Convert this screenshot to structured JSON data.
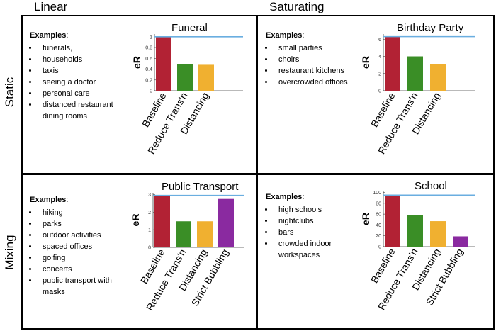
{
  "headers": {
    "columns": [
      "Linear",
      "Saturating"
    ],
    "rows": [
      "Static",
      "Mixing"
    ]
  },
  "panels": [
    {
      "examples_title": "Examples",
      "examples_colon": ":",
      "examples": [
        "funerals,",
        "households",
        "taxis",
        "seeing a doctor",
        "personal care",
        "distanced restaurant dining rooms"
      ]
    },
    {
      "examples_title": "Examples",
      "examples_colon": ":",
      "examples": [
        "small parties",
        "choirs",
        "restaurant kitchens",
        "overcrowded offices"
      ]
    },
    {
      "examples_title": "Examples",
      "examples_colon": ":",
      "examples": [
        "hiking",
        "parks",
        "outdoor activities",
        "spaced offices",
        "golfing",
        "concerts",
        "public transport with masks"
      ]
    },
    {
      "examples_title": "Examples",
      "examples_colon": ":",
      "examples": [
        "high schools",
        "nightclubs",
        "bars",
        "crowded indoor workspaces"
      ]
    }
  ],
  "colors": {
    "baseline": "#b22234",
    "reduce": "#3a8e26",
    "distancing": "#f0b030",
    "bubbling": "#8a2aa0",
    "refline": "#6aaee0"
  },
  "chart_data": [
    {
      "type": "bar",
      "title": "Funeral",
      "ylabel": "eR",
      "categories": [
        "Baseline",
        "Reduce Trans'n",
        "Distancing"
      ],
      "values": [
        1.0,
        0.49,
        0.48
      ],
      "ylim": [
        0,
        1.05
      ],
      "yticks": [
        0,
        0.2,
        0.4,
        0.6,
        0.8,
        1
      ],
      "yticklabels": [
        "0",
        "0.2",
        "0.4",
        "0.6",
        "0.8",
        "1"
      ],
      "reference_line": 1.0
    },
    {
      "type": "bar",
      "title": "Birthday Party",
      "ylabel": "eR",
      "categories": [
        "Baseline",
        "Reduce Trans'n",
        "Distancing"
      ],
      "values": [
        6.3,
        4.0,
        3.1
      ],
      "ylim": [
        0,
        6.6
      ],
      "yticks": [
        0,
        2,
        4,
        6
      ],
      "yticklabels": [
        "0",
        "2",
        "4",
        "6"
      ],
      "reference_line": 6.3
    },
    {
      "type": "bar",
      "title": "Public Transport",
      "ylabel": "eR",
      "categories": [
        "Baseline",
        "Reduce Trans'n",
        "Distancing",
        "Strict Bubbling"
      ],
      "values": [
        2.95,
        1.48,
        1.48,
        2.75
      ],
      "ylim": [
        0,
        3.1
      ],
      "yticks": [
        0,
        1,
        2,
        3
      ],
      "yticklabels": [
        "0",
        "1",
        "2",
        "3"
      ],
      "reference_line": 2.95
    },
    {
      "type": "bar",
      "title": "School",
      "ylabel": "eR",
      "categories": [
        "Baseline",
        "Reduce Trans'n",
        "Distancing",
        "Strict Bubbling"
      ],
      "values": [
        95,
        58,
        47,
        19
      ],
      "ylim": [
        0,
        102
      ],
      "yticks": [
        0,
        20,
        40,
        60,
        80,
        100
      ],
      "yticklabels": [
        "0",
        "20",
        "40",
        "60",
        "80",
        "100"
      ],
      "reference_line": 95
    }
  ]
}
